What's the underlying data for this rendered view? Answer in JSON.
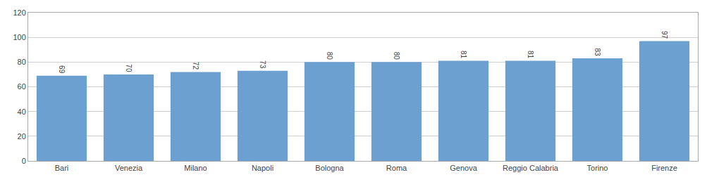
{
  "chart_data": {
    "type": "bar",
    "categories": [
      "Bari",
      "Venezia",
      "Milano",
      "Napoli",
      "Bologna",
      "Roma",
      "Genova",
      "Reggio Calabria",
      "Torino",
      "Firenze"
    ],
    "values": [
      69,
      70,
      72,
      73,
      80,
      80,
      81,
      81,
      83,
      97
    ],
    "color": "#6CA0D0",
    "ylim": [
      0,
      120
    ],
    "yticks": [
      0,
      20,
      40,
      60,
      80,
      100,
      120
    ],
    "grid": true,
    "data_labels": true
  }
}
